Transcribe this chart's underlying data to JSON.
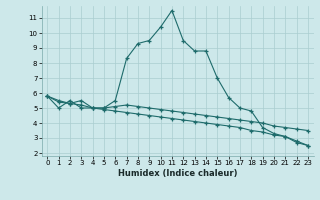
{
  "xlabel": "Humidex (Indice chaleur)",
  "bg_color": "#cde8ea",
  "grid_color": "#aacdd0",
  "line_color": "#1e6b6b",
  "xlim": [
    -0.5,
    23.5
  ],
  "ylim": [
    1.8,
    11.8
  ],
  "yticks": [
    2,
    3,
    4,
    5,
    6,
    7,
    8,
    9,
    10,
    11
  ],
  "xticks": [
    0,
    1,
    2,
    3,
    4,
    5,
    6,
    7,
    8,
    9,
    10,
    11,
    12,
    13,
    14,
    15,
    16,
    17,
    18,
    19,
    20,
    21,
    22,
    23
  ],
  "curve1_x": [
    0,
    1,
    2,
    3,
    4,
    5,
    6,
    7,
    8,
    9,
    10,
    11,
    12,
    13,
    14,
    15,
    16,
    17,
    18,
    19,
    20,
    21,
    22,
    23
  ],
  "curve1_y": [
    5.8,
    5.0,
    5.5,
    5.0,
    5.0,
    5.0,
    5.5,
    8.3,
    9.3,
    9.5,
    10.4,
    11.5,
    9.5,
    8.8,
    8.8,
    7.0,
    5.7,
    5.0,
    4.8,
    3.7,
    3.3,
    3.1,
    2.7,
    2.5
  ],
  "curve2_x": [
    0,
    1,
    2,
    3,
    4,
    5,
    6,
    7,
    8,
    9,
    10,
    11,
    12,
    13,
    14,
    15,
    16,
    17,
    18,
    19,
    20,
    21,
    22,
    23
  ],
  "curve2_y": [
    5.8,
    5.4,
    5.3,
    5.5,
    5.0,
    5.0,
    5.1,
    5.2,
    5.1,
    5.0,
    4.9,
    4.8,
    4.7,
    4.6,
    4.5,
    4.4,
    4.3,
    4.2,
    4.1,
    4.0,
    3.8,
    3.7,
    3.6,
    3.5
  ],
  "curve3_x": [
    0,
    1,
    2,
    3,
    4,
    5,
    6,
    7,
    8,
    9,
    10,
    11,
    12,
    13,
    14,
    15,
    16,
    17,
    18,
    19,
    20,
    21,
    22,
    23
  ],
  "curve3_y": [
    5.8,
    5.5,
    5.3,
    5.2,
    5.0,
    4.9,
    4.8,
    4.7,
    4.6,
    4.5,
    4.4,
    4.3,
    4.2,
    4.1,
    4.0,
    3.9,
    3.8,
    3.7,
    3.5,
    3.4,
    3.2,
    3.1,
    2.8,
    2.5
  ]
}
